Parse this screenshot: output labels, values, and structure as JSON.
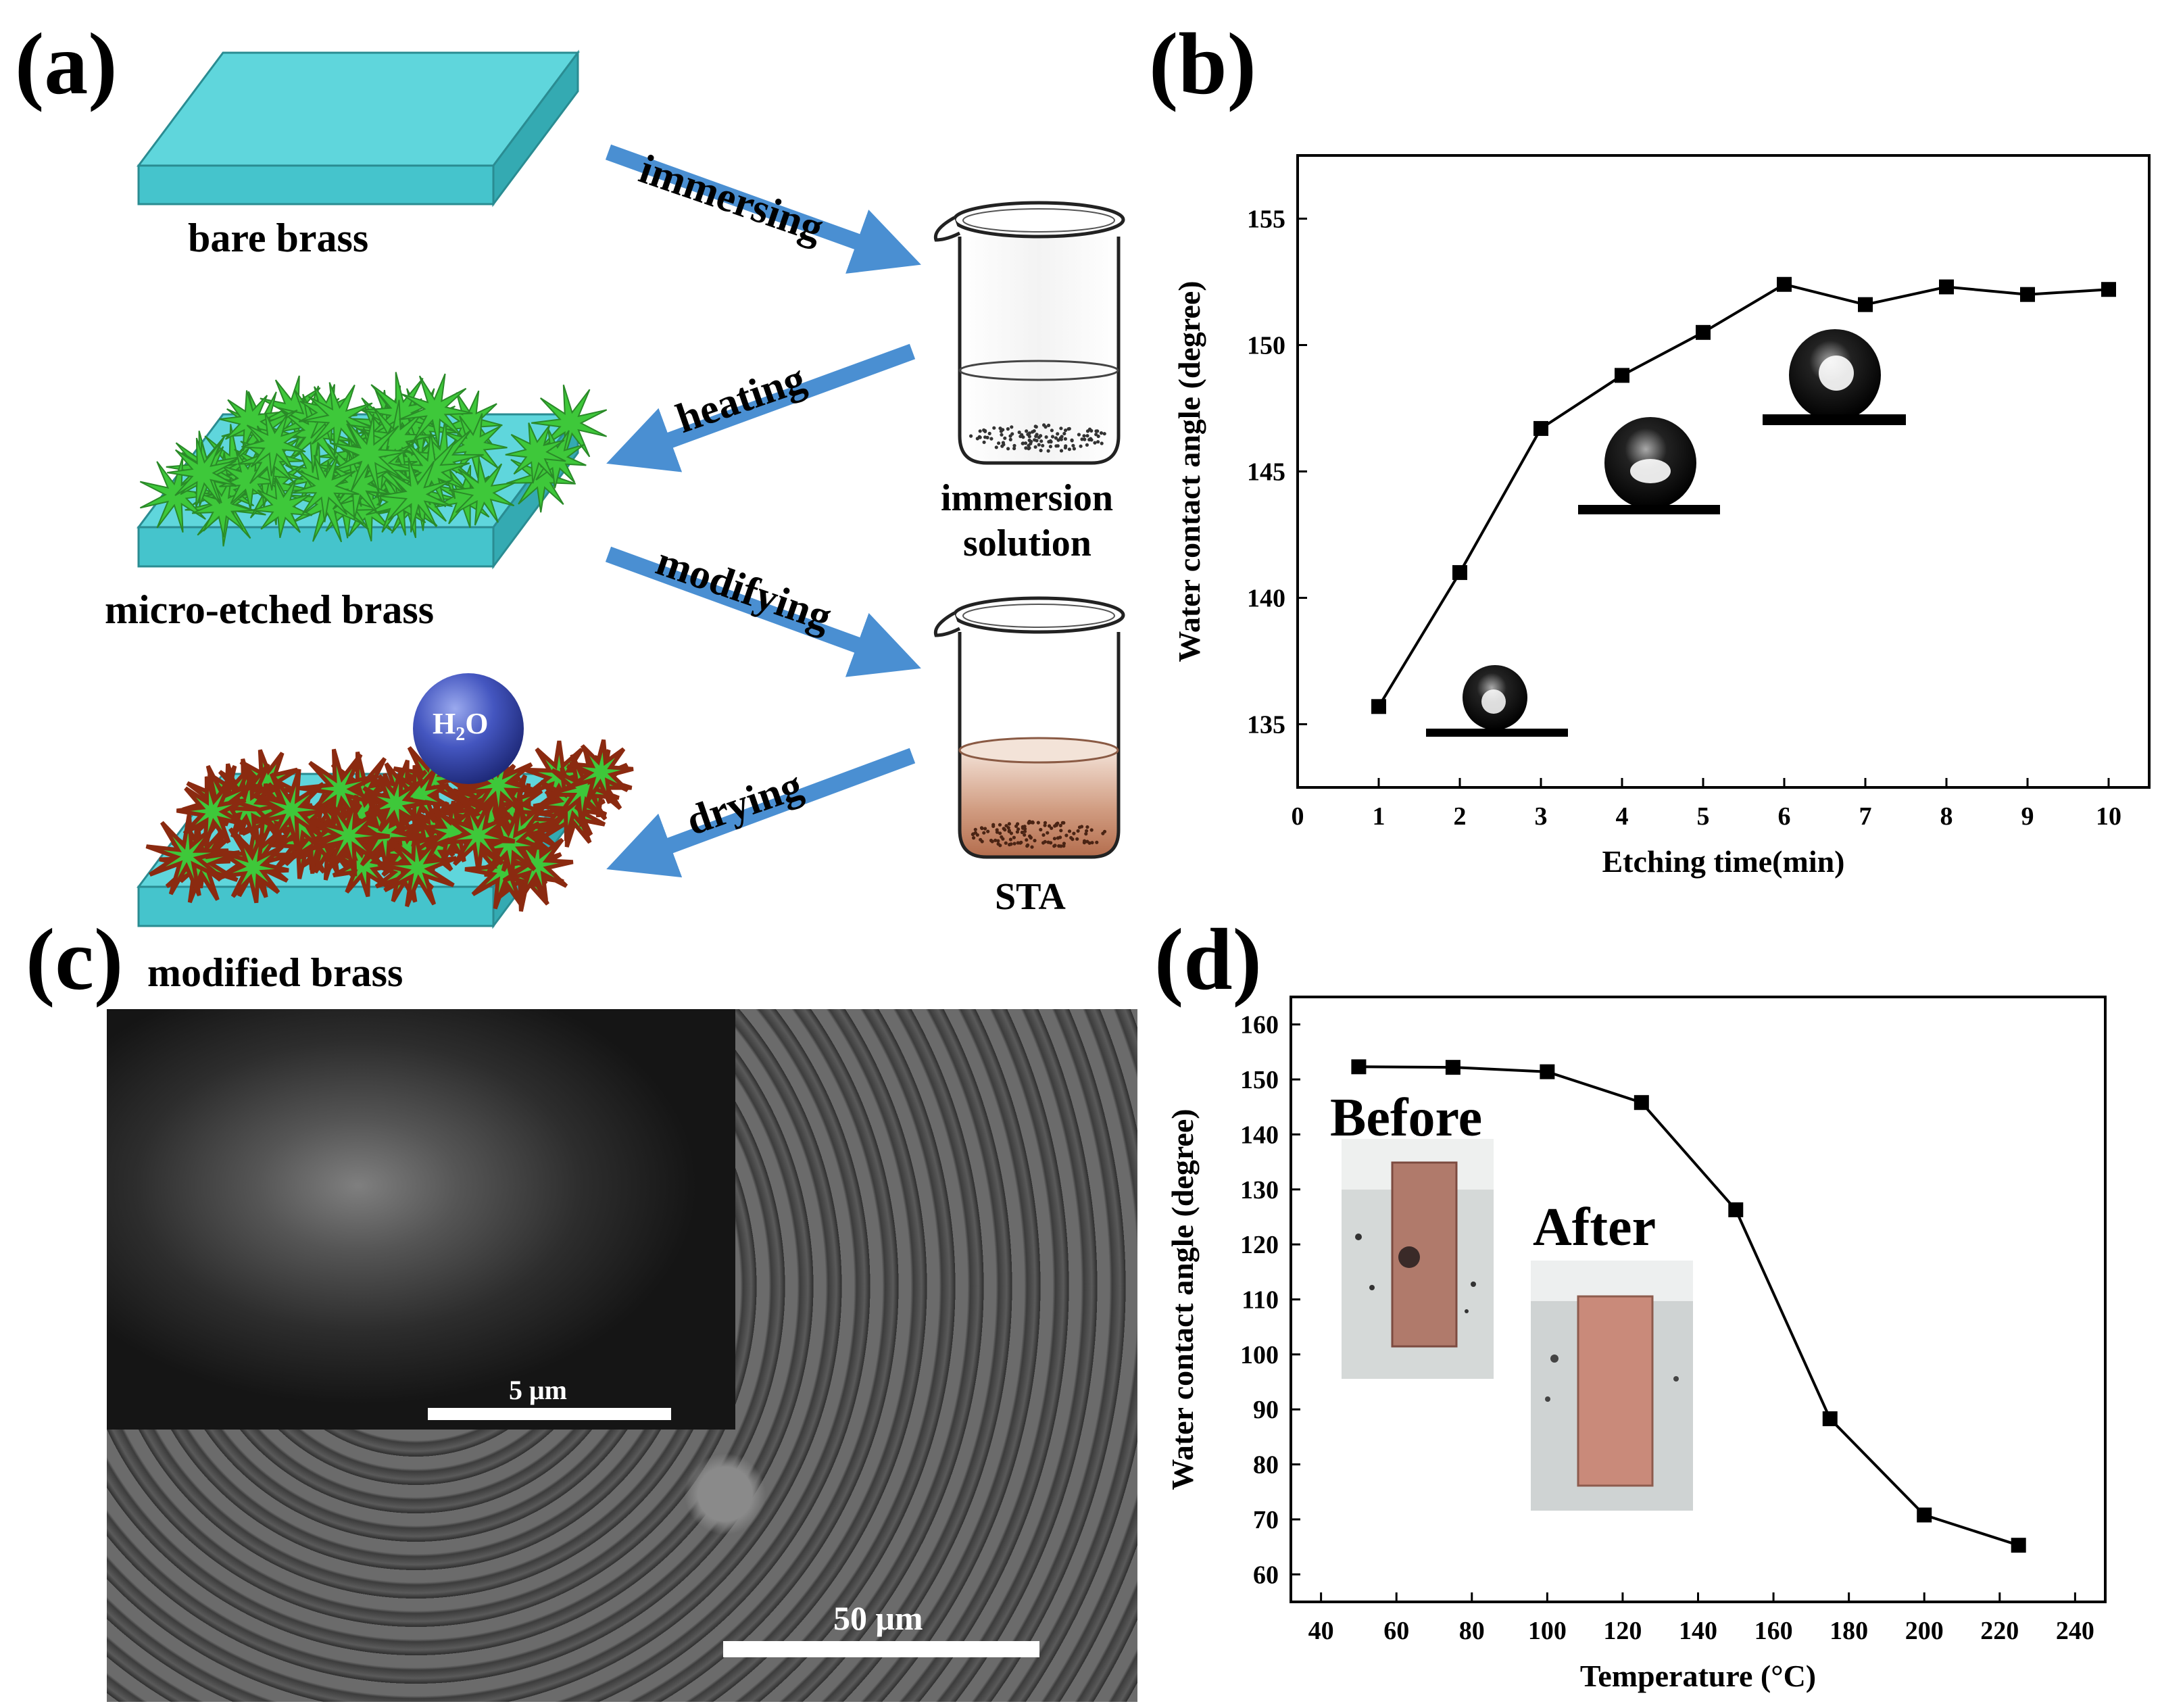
{
  "panel_labels": {
    "a": "(a)",
    "b": "(b)",
    "c": "(c)",
    "d": "(d)"
  },
  "schematic": {
    "brass_labels": {
      "bare": "bare brass",
      "etched": "micro-etched brass",
      "modified": "modified brass"
    },
    "arrow_labels": {
      "immersing": "immersing",
      "heating": "heating",
      "modifying": "modifying",
      "drying": "drying"
    },
    "beaker_labels": {
      "immersion_line1": "immersion",
      "immersion_line2": "solution",
      "sta": "STA"
    },
    "droplet": {
      "main": "H",
      "sub": "2",
      "tail": "O"
    },
    "colors": {
      "slab_top": "#5fd6dc",
      "slab_side": "#3fbac4",
      "spikes": "#3ec83a",
      "spike_edge": "#8b2a10",
      "arrow": "#4a8fd2",
      "sta_liquid": "#c8866a",
      "droplet": "#3b4fb0"
    }
  },
  "sem": {
    "scale_main": "50 μm",
    "scale_inset": "5 μm"
  },
  "chart_data": [
    {
      "type": "line",
      "xlabel": "Etching time(min)",
      "ylabel": "Water contact angle (degree)",
      "xlim": [
        0,
        10.5
      ],
      "ylim": [
        132.5,
        157.5
      ],
      "xticks": [
        "0",
        "1",
        "2",
        "3",
        "4",
        "5",
        "6",
        "7",
        "8",
        "9",
        "10"
      ],
      "yticks": [
        "135",
        "140",
        "145",
        "150",
        "155"
      ],
      "x": [
        1,
        2,
        3,
        4,
        5,
        6,
        7,
        8,
        9,
        10
      ],
      "y": [
        135.7,
        141.0,
        146.7,
        148.8,
        150.5,
        152.4,
        151.6,
        152.3,
        152.0,
        152.2
      ],
      "marker": "square",
      "inset_images": [
        "water-droplet-1min",
        "water-droplet-4min",
        "water-droplet-6min"
      ]
    },
    {
      "type": "line",
      "xlabel": "Temperature (°C)",
      "ylabel": "Water contact angle (degree)",
      "xlim": [
        32,
        248
      ],
      "ylim": [
        55,
        165
      ],
      "xticks": [
        "40",
        "60",
        "80",
        "100",
        "120",
        "140",
        "160",
        "180",
        "200",
        "220",
        "240"
      ],
      "yticks": [
        "60",
        "70",
        "80",
        "90",
        "100",
        "110",
        "120",
        "130",
        "140",
        "150",
        "160"
      ],
      "x": [
        50,
        75,
        100,
        125,
        150,
        175,
        200,
        225
      ],
      "y": [
        152.3,
        152.2,
        151.4,
        145.8,
        126.3,
        88.3,
        70.8,
        65.3
      ],
      "marker": "square",
      "annotations": [
        "Before",
        "After"
      ]
    }
  ]
}
